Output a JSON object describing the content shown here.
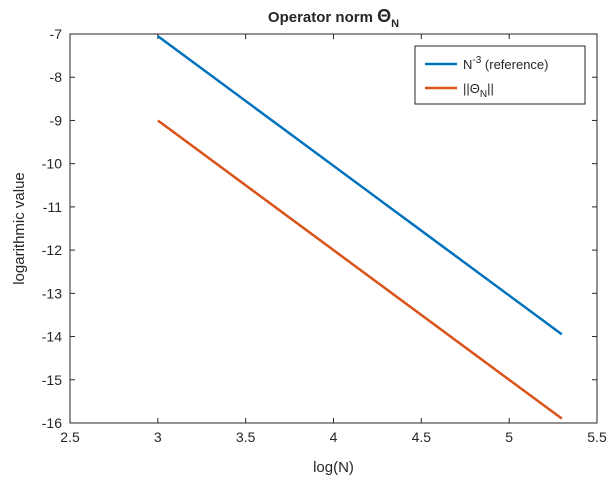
{
  "chart_data": {
    "type": "line",
    "title": "Operator norm",
    "title_symbol": "Θ",
    "title_subscript": "N",
    "xlabel": "log(N)",
    "ylabel": "logarithmic value",
    "xlim": [
      2.5,
      5.5
    ],
    "ylim": [
      -16,
      -7
    ],
    "x_ticks": [
      2.5,
      3,
      3.5,
      4,
      4.5,
      5,
      5.5
    ],
    "y_ticks": [
      -7,
      -8,
      -9,
      -10,
      -11,
      -12,
      -13,
      -14,
      -15,
      -16
    ],
    "x_tick_labels": [
      "2.5",
      "3",
      "3.5",
      "4",
      "4.5",
      "5",
      "5.5"
    ],
    "y_tick_labels": [
      "-7",
      "-8",
      "-9",
      "-10",
      "-11",
      "-12",
      "-13",
      "-14",
      "-15",
      "-16"
    ],
    "grid": false,
    "legend_position": "top-right",
    "series": [
      {
        "name": "N-3 (reference)",
        "legend_main": "N",
        "legend_sup": "-3",
        "legend_rest": "(reference)",
        "color": "#0072BD",
        "x": [
          3,
          5.3
        ],
        "y": [
          -7.05,
          -13.95
        ]
      },
      {
        "name": "||ΘN||",
        "legend_main": "||Θ",
        "legend_sub": "N",
        "legend_rest": "||",
        "color": "#D95319",
        "x": [
          3,
          5.3
        ],
        "y": [
          -9.0,
          -15.9
        ]
      }
    ]
  }
}
